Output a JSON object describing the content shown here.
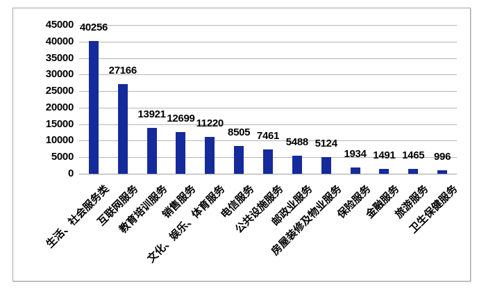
{
  "chart_data": {
    "type": "bar",
    "title": "",
    "xlabel": "",
    "ylabel": "",
    "categories": [
      "生活、社会服务类",
      "互联网服务",
      "教育培训服务",
      "销售服务",
      "文化、娱乐、体育服务",
      "电信服务",
      "公共设施服务",
      "邮政业服务",
      "房屋装修及物业服务",
      "保险服务",
      "金融服务",
      "旅游服务",
      "卫生保健服务"
    ],
    "values": [
      40256,
      27166,
      13921,
      12699,
      11220,
      8505,
      7461,
      5488,
      5124,
      1934,
      1491,
      1465,
      996
    ],
    "value_labels": [
      "40256",
      "27166",
      "13921",
      "12699",
      "11220",
      "8505",
      "7461",
      "5488",
      "5124",
      "1934",
      "1491",
      "1465",
      "996"
    ],
    "ylim": [
      0,
      45000
    ],
    "ytick_step": 5000,
    "ytick_labels": [
      "0",
      "5000",
      "10000",
      "15000",
      "20000",
      "25000",
      "30000",
      "35000",
      "40000",
      "45000"
    ],
    "grid": true,
    "legend": "none",
    "x_label_rotation_deg": 45,
    "colors": {
      "bar": "#152A9B",
      "gridline": "#b5b5b5",
      "axis_line": "#a0a0a0",
      "text": "#000000",
      "frame_border": "#a6a6a6",
      "background": "#ffffff"
    }
  }
}
